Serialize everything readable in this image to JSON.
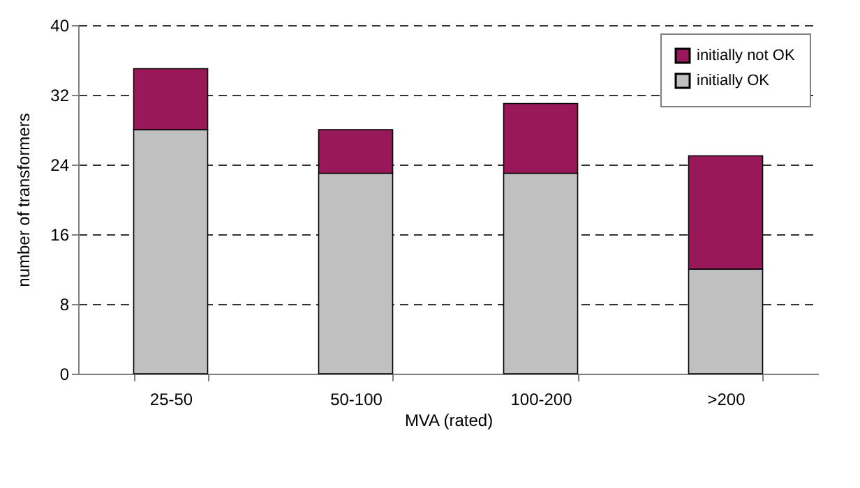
{
  "chart_data": {
    "type": "bar",
    "stacked": true,
    "xlabel": "MVA (rated)",
    "ylabel": "number of transformers",
    "categories": [
      "25-50",
      "50-100",
      "100-200",
      ">200"
    ],
    "series": [
      {
        "name": "initially OK",
        "color": "#c0c0c0",
        "values": [
          28,
          23,
          23,
          12
        ]
      },
      {
        "name": "initially not OK",
        "color": "#99185a",
        "values": [
          7,
          5,
          8,
          13
        ]
      }
    ],
    "ylim": [
      0,
      40
    ],
    "yticks": [
      0,
      8,
      16,
      24,
      32,
      40
    ],
    "grid": "y",
    "legend": "top right"
  }
}
